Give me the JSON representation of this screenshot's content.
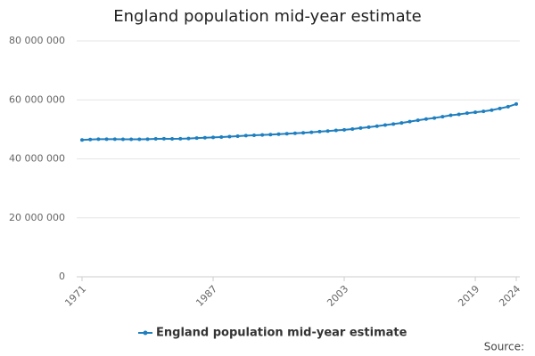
{
  "chart_data": {
    "type": "line",
    "title": "England population mid-year estimate",
    "x": [
      1971,
      1972,
      1973,
      1974,
      1975,
      1976,
      1977,
      1978,
      1979,
      1980,
      1981,
      1982,
      1983,
      1984,
      1985,
      1986,
      1987,
      1988,
      1989,
      1990,
      1991,
      1992,
      1993,
      1994,
      1995,
      1996,
      1997,
      1998,
      1999,
      2000,
      2001,
      2002,
      2003,
      2004,
      2005,
      2006,
      2007,
      2008,
      2009,
      2010,
      2011,
      2012,
      2013,
      2014,
      2015,
      2016,
      2017,
      2018,
      2019,
      2020,
      2021,
      2022,
      2023,
      2024
    ],
    "series": [
      {
        "name": "England population mid-year estimate",
        "color": "#1f7fbf",
        "values": [
          46412000,
          46571000,
          46686000,
          46682000,
          46674000,
          46660000,
          46636000,
          46639000,
          46698000,
          46787000,
          46821000,
          46777000,
          46813000,
          46913000,
          47057000,
          47188000,
          47300000,
          47412000,
          47552000,
          47699000,
          47875000,
          47998000,
          48102000,
          48229000,
          48383000,
          48519000,
          48665000,
          48821000,
          49033000,
          49233000,
          49450000,
          49652000,
          49866000,
          50111000,
          50466000,
          50763000,
          51106000,
          51465000,
          51809000,
          52196000,
          52642000,
          53107000,
          53494000,
          53866000,
          54316000,
          54786000,
          55098000,
          55492000,
          55797000,
          56107000,
          56536000,
          57112000,
          57690000,
          58620000
        ]
      }
    ],
    "xlim": [
      1971,
      2024
    ],
    "xticks": [
      1971,
      1987,
      2003,
      2019,
      2024
    ],
    "ylim": [
      0,
      80000000
    ],
    "yticks": [
      0,
      {
        "value": 20000000,
        "label": "20 000 000"
      },
      {
        "value": 40000000,
        "label": "40 000 000"
      },
      {
        "value": 60000000,
        "label": "60 000 000"
      },
      {
        "value": 80000000,
        "label": "80 000 000"
      }
    ],
    "grid": true,
    "source": "Source:"
  }
}
